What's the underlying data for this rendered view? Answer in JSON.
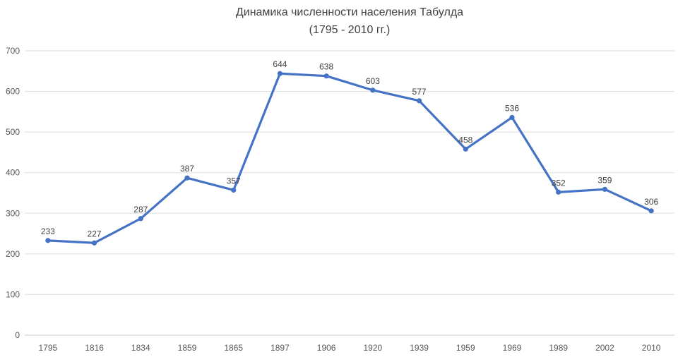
{
  "chart_data": {
    "type": "line",
    "title": "Динамика численности населения Табулда",
    "subtitle": "(1795 - 2010 гг.)",
    "categories": [
      "1795",
      "1816",
      "1834",
      "1859",
      "1865",
      "1897",
      "1906",
      "1920",
      "1939",
      "1959",
      "1969",
      "1989",
      "2002",
      "2010"
    ],
    "values": [
      233,
      227,
      287,
      387,
      357,
      644,
      638,
      603,
      577,
      458,
      536,
      352,
      359,
      306
    ],
    "xlabel": "",
    "ylabel": "",
    "ylim": [
      0,
      700
    ],
    "ytick_step": 100,
    "yticks": [
      "0",
      "100",
      "200",
      "300",
      "400",
      "500",
      "600",
      "700"
    ],
    "grid": true,
    "legend_position": "none",
    "data_labels_position": "above",
    "marker": "circle"
  },
  "colors": {
    "series_line": "#4472C4",
    "marker_fill": "#4472C4",
    "gridline": "#E4E4E4",
    "axis_line": "#D6D6D6",
    "tick_text": "#595959",
    "data_label_text": "#404040",
    "title_text": "#404040",
    "background": "#FFFFFF"
  }
}
